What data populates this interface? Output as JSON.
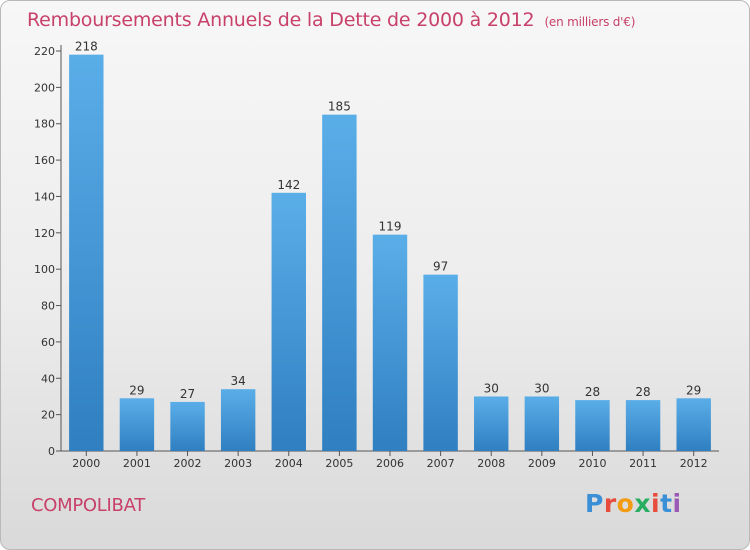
{
  "header": {
    "title": "Remboursements Annuels de la Dette de 2000 à 2012",
    "unit": "(en milliers d'€)"
  },
  "footer": {
    "commune": "COMPOLIBAT",
    "logo_letters": [
      "P",
      "r",
      "o",
      "x",
      "i",
      "t",
      "i"
    ]
  },
  "colors": {
    "title": "#c8416a",
    "bar_top": "#5aaee8",
    "bar_bottom": "#2f7fc1"
  },
  "chart_data": {
    "type": "bar",
    "title": "Remboursements Annuels de la Dette de 2000 à 2012",
    "xlabel": "",
    "ylabel": "",
    "categories": [
      "2000",
      "2001",
      "2002",
      "2003",
      "2004",
      "2005",
      "2006",
      "2007",
      "2008",
      "2009",
      "2010",
      "2011",
      "2012"
    ],
    "values": [
      218,
      29,
      27,
      34,
      142,
      185,
      119,
      97,
      30,
      30,
      28,
      28,
      29
    ],
    "ylim": [
      0,
      220
    ],
    "yticks": [
      0,
      20,
      40,
      60,
      80,
      100,
      120,
      140,
      160,
      180,
      200,
      220
    ],
    "grid": false,
    "legend": "none"
  }
}
